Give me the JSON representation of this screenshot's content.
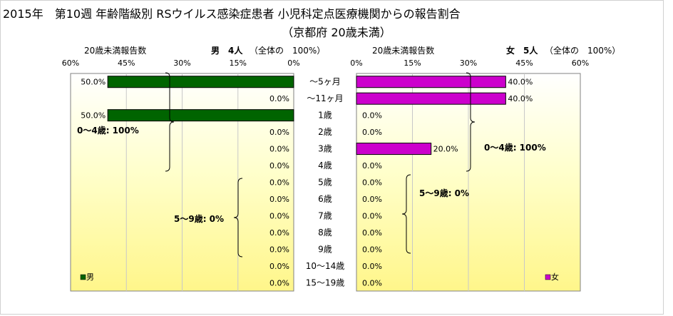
{
  "title": "2015年　第10週 年齢階級別 RSウイルス感染症患者 小児科定点医療機関からの報告割合",
  "subtitle": "（京都府 20歳未満）",
  "chart_data": {
    "type": "bar",
    "orientation": "horizontal",
    "categories": [
      "～5ヶ月",
      "～11ヶ月",
      "1歳",
      "2歳",
      "3歳",
      "4歳",
      "5歳",
      "6歳",
      "7歳",
      "8歳",
      "9歳",
      "10～14歳",
      "15～19歳"
    ],
    "x_ticks": [
      "60%",
      "45%",
      "30%",
      "15%",
      "0%"
    ],
    "x_ticks_right": [
      "0%",
      "15%",
      "30%",
      "45%",
      "60%"
    ],
    "xlim": [
      0,
      60
    ],
    "series": [
      {
        "name": "男",
        "color": "#006400",
        "values": [
          50.0,
          0.0,
          50.0,
          0.0,
          0.0,
          0.0,
          0.0,
          0.0,
          0.0,
          0.0,
          0.0,
          0.0,
          0.0
        ],
        "labels": [
          "50.0%",
          "0.0%",
          "50.0%",
          "0.0%",
          "0.0%",
          "0.0%",
          "0.0%",
          "0.0%",
          "0.0%",
          "0.0%",
          "0.0%",
          "0.0%",
          "0.0%"
        ]
      },
      {
        "name": "女",
        "color": "#cc00cc",
        "values": [
          40.0,
          40.0,
          0.0,
          0.0,
          20.0,
          0.0,
          0.0,
          0.0,
          0.0,
          0.0,
          0.0,
          0.0,
          0.0
        ],
        "labels": [
          "40.0%",
          "40.0%",
          "0.0%",
          "0.0%",
          "20.0%",
          "0.0%",
          "0.0%",
          "0.0%",
          "0.0%",
          "0.0%",
          "0.0%",
          "0.0%",
          "0.0%"
        ]
      }
    ],
    "plot_background": "yellow gradient",
    "male_header": {
      "left": "20歳未満報告数",
      "label": "男　4人",
      "total": "（全体の　100%）"
    },
    "female_header": {
      "left": "20歳未満報告数",
      "label": "女　5人",
      "total": "（全体の　100%）"
    },
    "annotations": {
      "male_0_4": "0～4歳: 100%",
      "male_5_9": "5～9歳: 0%",
      "female_0_4": "0～4歳: 100%",
      "female_5_9": "5～9歳: 0%"
    },
    "legend_male": "男",
    "legend_female": "女"
  }
}
